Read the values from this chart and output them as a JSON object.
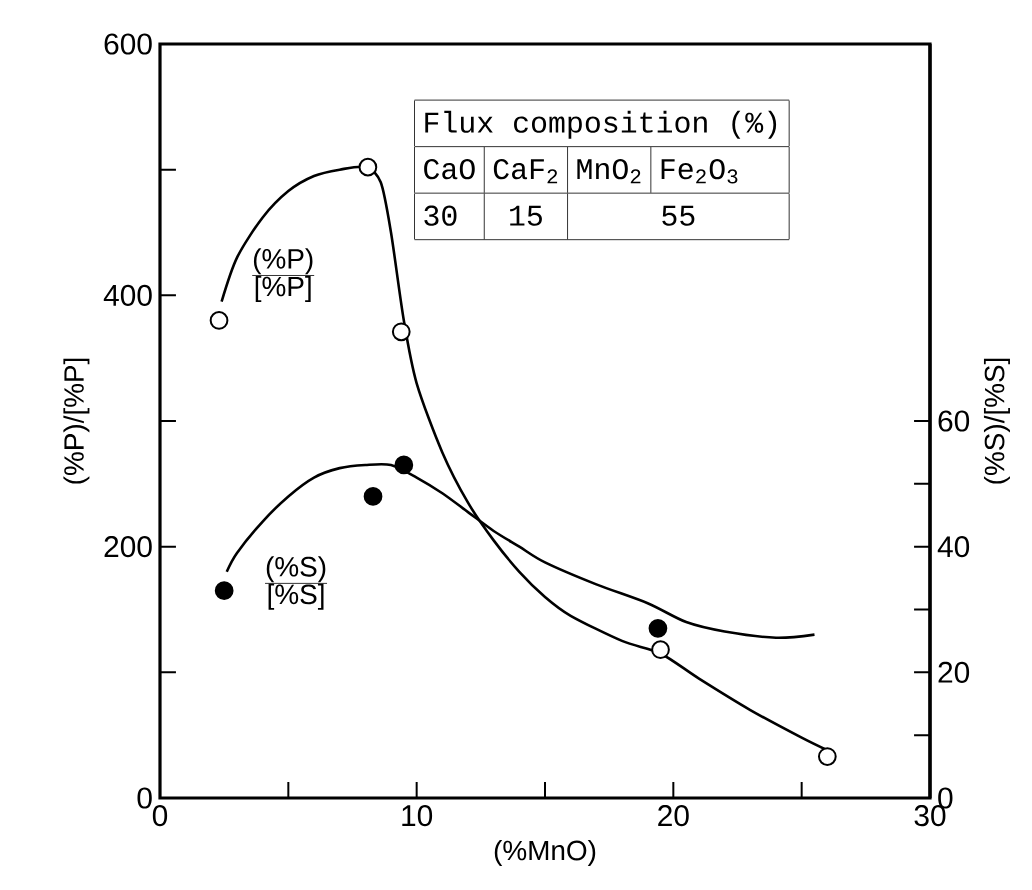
{
  "chart_data": {
    "type": "scatter",
    "xlabel": "(%MnO)",
    "ylabel": "(%P)/[%P]",
    "y2label": "(%S)/[%S]",
    "xlim": [
      0,
      30
    ],
    "xticks": [
      0,
      {
        "value": 5,
        "label": null
      },
      10,
      {
        "value": 15,
        "label": null
      },
      20,
      {
        "value": 25,
        "label": null
      },
      30
    ],
    "ylim": [
      0,
      600
    ],
    "yticks": [
      0,
      {
        "value": 100,
        "label": null
      },
      200,
      {
        "value": 300,
        "label": null
      },
      400,
      {
        "value": 500,
        "label": null
      },
      600
    ],
    "y2lim": [
      0,
      120
    ],
    "y2ticks": [
      0,
      {
        "value": 10,
        "label": null
      },
      20,
      {
        "value": 30,
        "label": null
      },
      40,
      {
        "value": 50,
        "label": null
      },
      60
    ],
    "line_style": "solid",
    "series": [
      {
        "type": "line",
        "marker": "none",
        "color": "#000000",
        "x": [
          2.4,
          3,
          4,
          5,
          6,
          7,
          8,
          8.6,
          9,
          9.5,
          10,
          11,
          12,
          13,
          14,
          15,
          16,
          18,
          19.5,
          21,
          23,
          25,
          26
        ],
        "values": [
          395,
          430,
          462,
          483,
          495,
          500,
          502,
          490,
          450,
          380,
          330,
          275,
          235,
          205,
          180,
          160,
          145,
          125,
          115,
          95,
          70,
          48,
          38
        ]
      },
      {
        "type": "line",
        "marker": "none",
        "color": "#000000",
        "axis": "y2",
        "x": [
          2.6,
          3,
          4,
          5,
          6,
          7,
          8,
          9,
          10,
          11,
          12,
          13,
          14,
          15,
          17,
          19,
          20.5,
          22,
          24,
          25.5
        ],
        "values": [
          36,
          39,
          44,
          48,
          51,
          52.5,
          53,
          53,
          51,
          48.5,
          45.5,
          42.5,
          40,
          37.5,
          34,
          31,
          28,
          26.5,
          25.5,
          26
        ]
      },
      {
        "marker": "circle",
        "color": "#ffffff",
        "x": [
          2.3,
          8.1,
          9.4,
          19.5,
          26
        ],
        "values": [
          380,
          502,
          371,
          118,
          33
        ]
      },
      {
        "marker": "circle",
        "color": "#000000",
        "axis": "y2",
        "x": [
          2.5,
          8.3,
          9.5,
          19.4
        ],
        "values": [
          33,
          48,
          53,
          27
        ]
      }
    ],
    "annotations": [
      "Flux composition (%)",
      "CaO",
      "CaF$_{2}$",
      "MnO$_{2}$",
      "Fe$_{2}$O$_{3}$",
      "30",
      "15",
      "55",
      "(%P)",
      "[%P]",
      "(%S)",
      "[%S]"
    ]
  }
}
